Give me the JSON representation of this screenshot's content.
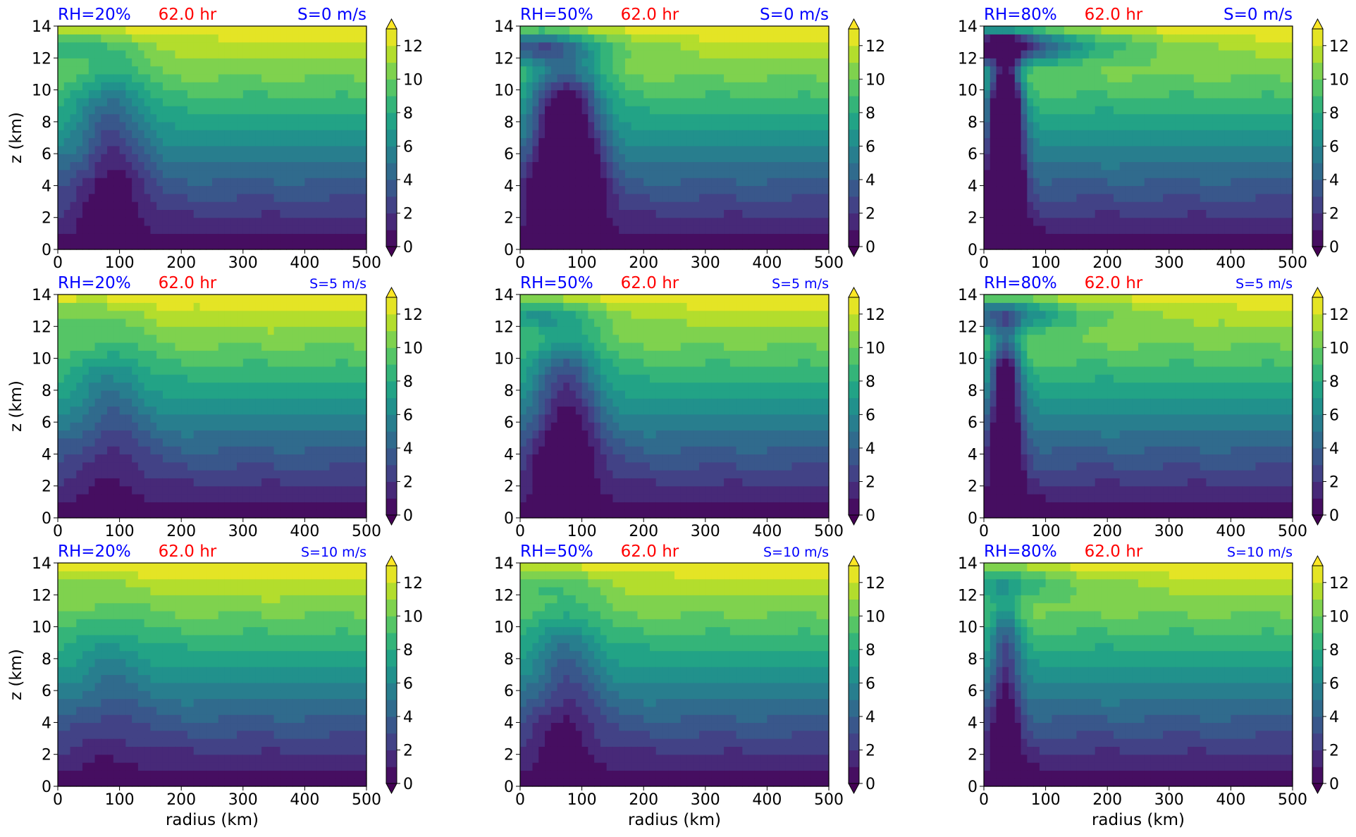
{
  "figure": {
    "xlabel": "radius (km)",
    "ylabel": "z (km)",
    "time_label": "62.0 hr",
    "colors": {
      "label_blue": "#0000ff",
      "label_red": "#ff0000",
      "viridis": [
        "#440154",
        "#482475",
        "#414487",
        "#355f8d",
        "#2a788e",
        "#21918c",
        "#22a884",
        "#44bf70",
        "#7ad151",
        "#bddf26",
        "#fde725"
      ]
    }
  },
  "chart_data": [
    {
      "type": "heatmap",
      "title": "",
      "rh": "RH=20%",
      "time": "62.0 hr",
      "shear": "S=0 m/s",
      "shear_value": 0,
      "rh_value": 20,
      "xlim": [
        0,
        500
      ],
      "ylim": [
        0,
        14
      ],
      "xticks": [
        0,
        100,
        200,
        300,
        400,
        500
      ],
      "yticks": [
        0,
        2,
        4,
        6,
        8,
        10,
        12,
        14
      ],
      "colorbar": {
        "ticks": [
          0,
          2,
          4,
          6,
          8,
          10,
          12
        ],
        "range": [
          0,
          13
        ],
        "extend": "both"
      }
    },
    {
      "type": "heatmap",
      "title": "",
      "rh": "RH=50%",
      "time": "62.0 hr",
      "shear": "S=0 m/s",
      "shear_value": 0,
      "rh_value": 50,
      "xlim": [
        0,
        500
      ],
      "ylim": [
        0,
        14
      ],
      "xticks": [
        0,
        100,
        200,
        300,
        400,
        500
      ],
      "yticks": [
        0,
        2,
        4,
        6,
        8,
        10,
        12,
        14
      ],
      "colorbar": {
        "ticks": [
          0,
          2,
          4,
          6,
          8,
          10,
          12
        ],
        "range": [
          0,
          13
        ],
        "extend": "both"
      }
    },
    {
      "type": "heatmap",
      "title": "",
      "rh": "RH=80%",
      "time": "62.0 hr",
      "shear": "S=0 m/s",
      "shear_value": 0,
      "rh_value": 80,
      "xlim": [
        0,
        500
      ],
      "ylim": [
        0,
        14
      ],
      "xticks": [
        0,
        100,
        200,
        300,
        400,
        500
      ],
      "yticks": [
        0,
        2,
        4,
        6,
        8,
        10,
        12,
        14
      ],
      "colorbar": {
        "ticks": [
          0,
          2,
          4,
          6,
          8,
          10,
          12
        ],
        "range": [
          0,
          13
        ],
        "extend": "both"
      }
    },
    {
      "type": "heatmap",
      "title": "",
      "rh": "RH=20%",
      "time": "62.0 hr",
      "shear": "S=5 m/s",
      "shear_value": 5,
      "rh_value": 20,
      "xlim": [
        0,
        500
      ],
      "ylim": [
        0,
        14
      ],
      "xticks": [
        0,
        100,
        200,
        300,
        400,
        500
      ],
      "yticks": [
        0,
        2,
        4,
        6,
        8,
        10,
        12,
        14
      ],
      "colorbar": {
        "ticks": [
          0,
          2,
          4,
          6,
          8,
          10,
          12
        ],
        "range": [
          0,
          13
        ],
        "extend": "both"
      }
    },
    {
      "type": "heatmap",
      "title": "",
      "rh": "RH=50%",
      "time": "62.0 hr",
      "shear": "S=5 m/s",
      "shear_value": 5,
      "rh_value": 50,
      "xlim": [
        0,
        500
      ],
      "ylim": [
        0,
        14
      ],
      "xticks": [
        0,
        100,
        200,
        300,
        400,
        500
      ],
      "yticks": [
        0,
        2,
        4,
        6,
        8,
        10,
        12,
        14
      ],
      "colorbar": {
        "ticks": [
          0,
          2,
          4,
          6,
          8,
          10,
          12
        ],
        "range": [
          0,
          13
        ],
        "extend": "both"
      }
    },
    {
      "type": "heatmap",
      "title": "",
      "rh": "RH=80%",
      "time": "62.0 hr",
      "shear": "S=5 m/s",
      "shear_value": 5,
      "rh_value": 80,
      "xlim": [
        0,
        500
      ],
      "ylim": [
        0,
        14
      ],
      "xticks": [
        0,
        100,
        200,
        300,
        400,
        500
      ],
      "yticks": [
        0,
        2,
        4,
        6,
        8,
        10,
        12,
        14
      ],
      "colorbar": {
        "ticks": [
          0,
          2,
          4,
          6,
          8,
          10,
          12
        ],
        "range": [
          0,
          13
        ],
        "extend": "both"
      }
    },
    {
      "type": "heatmap",
      "title": "",
      "rh": "RH=20%",
      "time": "62.0 hr",
      "shear": "S=10 m/s",
      "shear_value": 10,
      "rh_value": 20,
      "xlim": [
        0,
        500
      ],
      "ylim": [
        0,
        14
      ],
      "xticks": [
        0,
        100,
        200,
        300,
        400,
        500
      ],
      "yticks": [
        0,
        2,
        4,
        6,
        8,
        10,
        12,
        14
      ],
      "colorbar": {
        "ticks": [
          0,
          2,
          4,
          6,
          8,
          10,
          12
        ],
        "range": [
          0,
          13
        ],
        "extend": "both"
      }
    },
    {
      "type": "heatmap",
      "title": "",
      "rh": "RH=50%",
      "time": "62.0 hr",
      "shear": "S=10 m/s",
      "shear_value": 10,
      "rh_value": 50,
      "xlim": [
        0,
        500
      ],
      "ylim": [
        0,
        14
      ],
      "xticks": [
        0,
        100,
        200,
        300,
        400,
        500
      ],
      "yticks": [
        0,
        2,
        4,
        6,
        8,
        10,
        12,
        14
      ],
      "colorbar": {
        "ticks": [
          0,
          2,
          4,
          6,
          8,
          10,
          12
        ],
        "range": [
          0,
          13
        ],
        "extend": "both"
      }
    },
    {
      "type": "heatmap",
      "title": "",
      "rh": "RH=80%",
      "time": "62.0 hr",
      "shear": "S=10 m/s",
      "shear_value": 10,
      "rh_value": 80,
      "xlim": [
        0,
        500
      ],
      "ylim": [
        0,
        14
      ],
      "xticks": [
        0,
        100,
        200,
        300,
        400,
        500
      ],
      "yticks": [
        0,
        2,
        4,
        6,
        8,
        10,
        12,
        14
      ],
      "colorbar": {
        "ticks": [
          0,
          2,
          4,
          6,
          8,
          10,
          12
        ],
        "range": [
          0,
          13
        ],
        "extend": "both"
      }
    }
  ]
}
